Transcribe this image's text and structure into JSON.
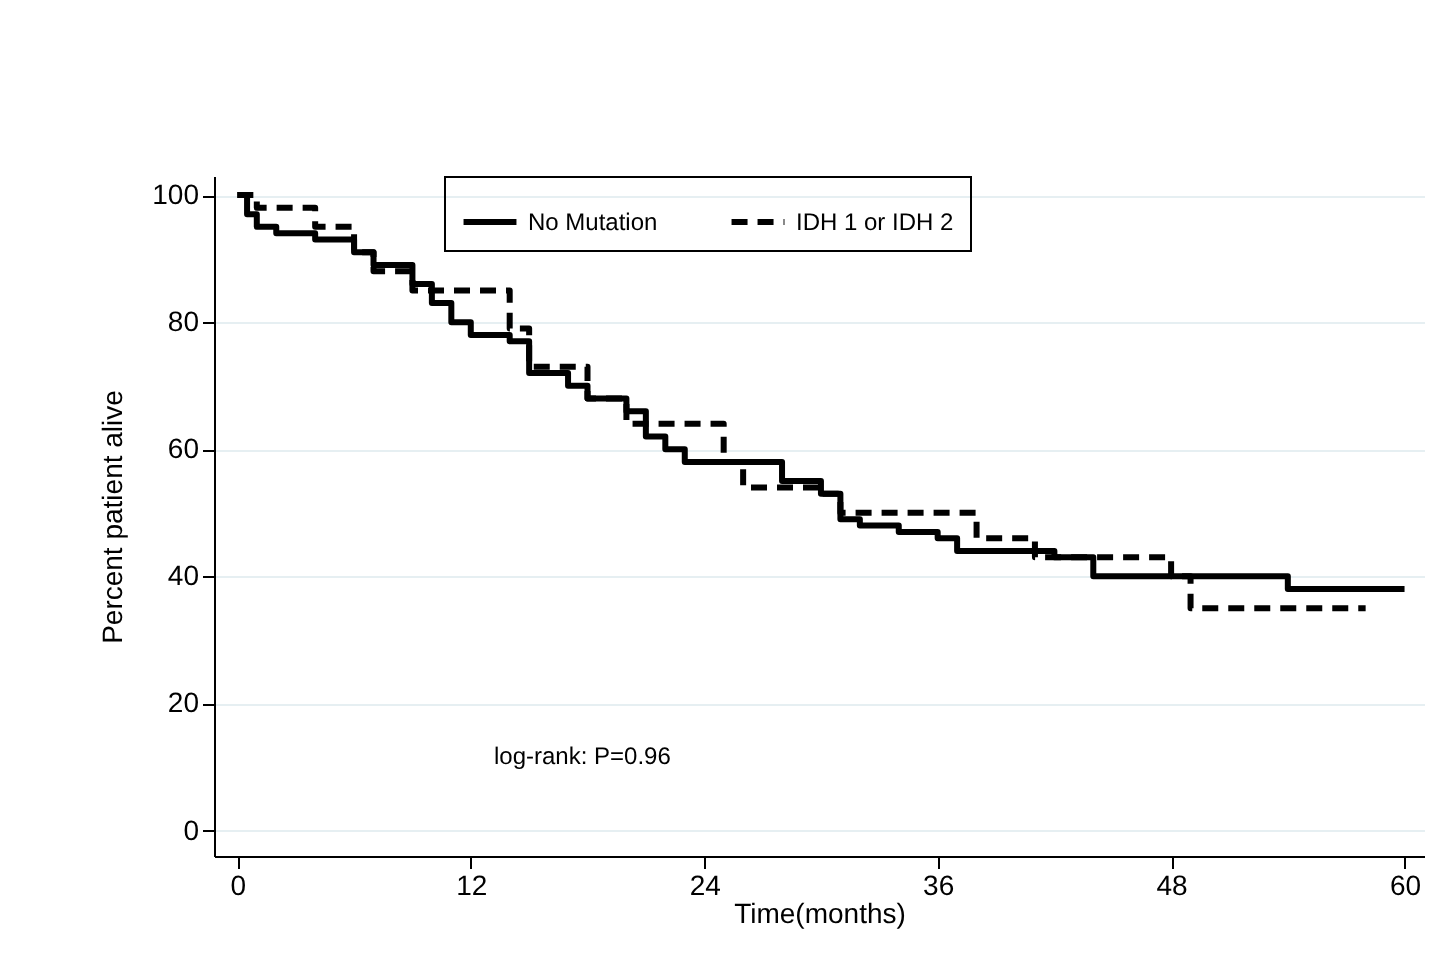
{
  "chart_data": {
    "type": "step",
    "xlabel": "Time(months)",
    "ylabel": "Percent patient alive",
    "annotations": [
      "log-rank: P=0.96"
    ],
    "xlim": [
      -1.2,
      61
    ],
    "xticks": [
      0,
      12,
      24,
      36,
      48,
      60
    ],
    "ylim": [
      -4,
      103
    ],
    "yticks": [
      0,
      20,
      40,
      60,
      80,
      100
    ],
    "grid": "y",
    "legend": "top",
    "marker": "none",
    "series": [
      {
        "name": "No Mutation",
        "color": "#000000",
        "line_style": "solid",
        "x": [
          0,
          0.5,
          1,
          2,
          4,
          6,
          7,
          9,
          10,
          11,
          12,
          14,
          15,
          17,
          18,
          20,
          21,
          22,
          23,
          27,
          28,
          30,
          31,
          32,
          34,
          36,
          37,
          40,
          42,
          44,
          54,
          60
        ],
        "values": [
          100,
          97,
          95,
          94,
          93,
          91,
          89,
          86,
          83,
          80,
          78,
          77,
          72,
          70,
          68,
          66,
          62,
          60,
          58,
          58,
          55,
          53,
          49,
          48,
          47,
          46,
          44,
          44,
          43,
          40,
          38,
          38
        ]
      },
      {
        "name": "IDH 1 or IDH 2",
        "color": "#000000",
        "line_style": "dashed",
        "x": [
          0,
          1,
          4,
          6,
          7,
          9,
          13,
          14,
          15,
          18,
          20,
          24,
          25,
          26,
          29,
          30,
          31,
          37,
          38,
          40,
          41,
          47,
          48,
          49,
          58
        ],
        "values": [
          100,
          98,
          95,
          91,
          88,
          85,
          85,
          79,
          73,
          68,
          64,
          64,
          58,
          54,
          54,
          53,
          50,
          50,
          46,
          46,
          43,
          43,
          40,
          35,
          35
        ]
      }
    ]
  }
}
